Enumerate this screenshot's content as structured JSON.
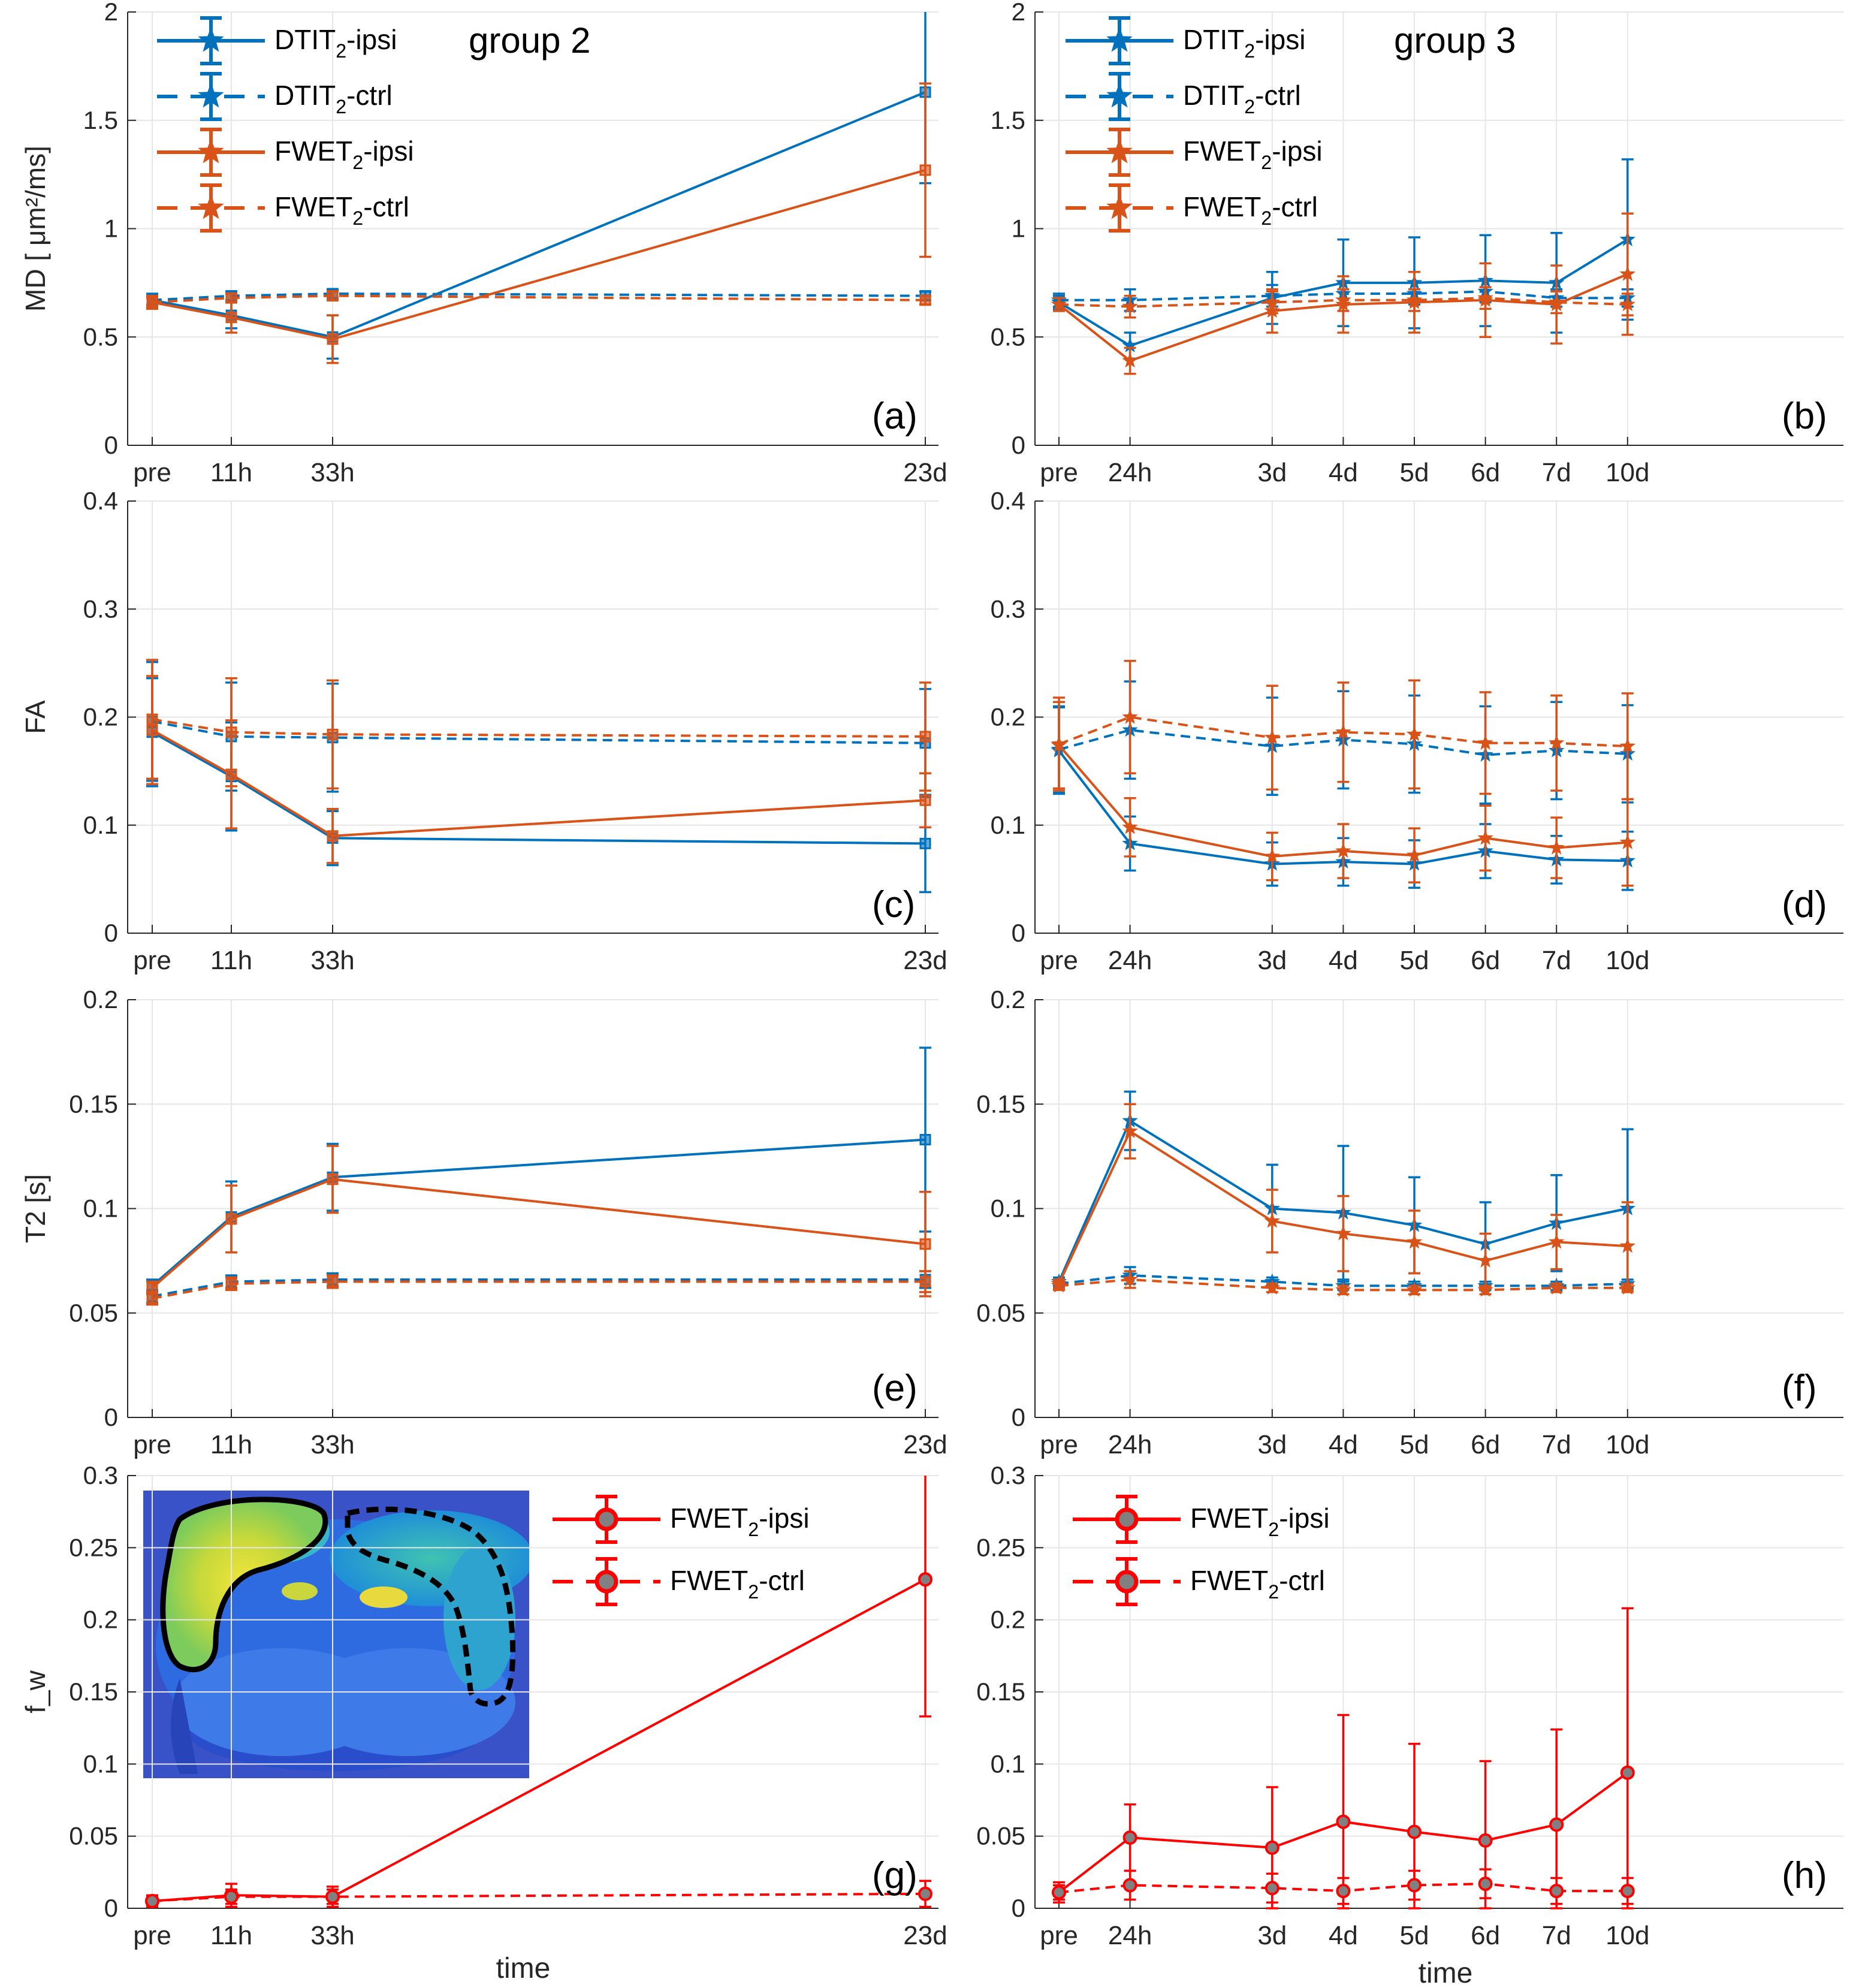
{
  "figure": {
    "xlabel": "time",
    "group_titles": {
      "left": "group 2",
      "right": "group 3"
    }
  },
  "colors": {
    "blue": "#0072BD",
    "orange": "#D95319",
    "red": "#FF0000",
    "marker_fill_gray": "#808080",
    "grid": "#E6E6E6"
  },
  "chart_data": [
    {
      "id": "a",
      "type": "line",
      "label": "(a)",
      "title": "group 2",
      "xlabel": "",
      "ylabel": "MD [ μm²/ms]",
      "ylim": [
        0,
        2
      ],
      "yticks": [
        0,
        0.5,
        1,
        1.5,
        2
      ],
      "ytick_labels": [
        "0",
        "0.5",
        "1",
        "1.5",
        "2"
      ],
      "x": [
        0,
        11,
        33,
        552
      ],
      "x_tick_labels": [
        "pre",
        "11h",
        "33h",
        "23d"
      ],
      "legend": "top-left",
      "grid": true,
      "series": [
        {
          "name": "DTIT2-ipsi",
          "color": "#0072BD",
          "dash": "solid",
          "marker": "square",
          "values": [
            0.67,
            0.6,
            0.5,
            1.63
          ],
          "err": [
            0.03,
            0.06,
            0.1,
            0.42
          ]
        },
        {
          "name": "DTIT2-ctrl",
          "color": "#0072BD",
          "dash": "dashed",
          "marker": "square",
          "values": [
            0.67,
            0.69,
            0.7,
            0.69
          ],
          "err": [
            0.02,
            0.02,
            0.02,
            0.02
          ]
        },
        {
          "name": "FWET2-ipsi",
          "color": "#D95319",
          "dash": "solid",
          "marker": "square",
          "values": [
            0.66,
            0.59,
            0.49,
            1.27
          ],
          "err": [
            0.03,
            0.07,
            0.11,
            0.4
          ]
        },
        {
          "name": "FWET2-ctrl",
          "color": "#D95319",
          "dash": "dashed",
          "marker": "square",
          "values": [
            0.66,
            0.68,
            0.69,
            0.67
          ],
          "err": [
            0.02,
            0.02,
            0.02,
            0.02
          ]
        }
      ]
    },
    {
      "id": "b",
      "type": "line",
      "label": "(b)",
      "title": "group 3",
      "xlabel": "",
      "ylabel": "",
      "ylim": [
        0,
        2
      ],
      "yticks": [
        0,
        0.5,
        1,
        1.5,
        2
      ],
      "ytick_labels": [
        "0",
        "0.5",
        "1",
        "1.5",
        "2"
      ],
      "x": [
        0,
        1,
        3,
        4,
        5,
        6,
        7,
        10
      ],
      "x_tick_pos": [
        0,
        1,
        3,
        4,
        5,
        6,
        7,
        8
      ],
      "x_tick_labels": [
        "pre",
        "24h",
        "3d",
        "4d",
        "5d",
        "6d",
        "7d",
        "10d"
      ],
      "legend": "top-left",
      "grid": true,
      "series": [
        {
          "name": "DTIT2-ipsi",
          "color": "#0072BD",
          "dash": "solid",
          "marker": "star",
          "values": [
            0.66,
            0.46,
            0.68,
            0.75,
            0.75,
            0.76,
            0.75,
            0.95
          ],
          "err": [
            0.03,
            0.06,
            0.12,
            0.2,
            0.21,
            0.21,
            0.23,
            0.37
          ]
        },
        {
          "name": "DTIT2-ctrl",
          "color": "#0072BD",
          "dash": "dashed",
          "marker": "star",
          "values": [
            0.67,
            0.67,
            0.69,
            0.7,
            0.7,
            0.71,
            0.68,
            0.68
          ],
          "err": [
            0.03,
            0.05,
            0.05,
            0.05,
            0.05,
            0.05,
            0.04,
            0.04
          ]
        },
        {
          "name": "FWET2-ipsi",
          "color": "#D95319",
          "dash": "solid",
          "marker": "star",
          "values": [
            0.65,
            0.39,
            0.62,
            0.65,
            0.66,
            0.67,
            0.65,
            0.79
          ],
          "err": [
            0.03,
            0.06,
            0.1,
            0.13,
            0.14,
            0.17,
            0.18,
            0.28
          ]
        },
        {
          "name": "FWET2-ctrl",
          "color": "#D95319",
          "dash": "dashed",
          "marker": "star",
          "values": [
            0.65,
            0.64,
            0.66,
            0.67,
            0.67,
            0.68,
            0.66,
            0.65
          ],
          "err": [
            0.03,
            0.05,
            0.05,
            0.05,
            0.05,
            0.05,
            0.05,
            0.05
          ]
        }
      ]
    },
    {
      "id": "c",
      "type": "line",
      "label": "(c)",
      "xlabel": "",
      "ylabel": "FA",
      "ylim": [
        0,
        0.4
      ],
      "yticks": [
        0,
        0.1,
        0.2,
        0.3,
        0.4
      ],
      "ytick_labels": [
        "0",
        "0.1",
        "0.2",
        "0.3",
        "0.4"
      ],
      "x": [
        0,
        11,
        33,
        552
      ],
      "x_tick_labels": [
        "pre",
        "11h",
        "33h",
        "23d"
      ],
      "grid": true,
      "series": [
        {
          "name": "DTIT2-ipsi",
          "color": "#0072BD",
          "dash": "solid",
          "marker": "square",
          "values": [
            0.186,
            0.145,
            0.088,
            0.083
          ],
          "err": [
            0.05,
            0.05,
            0.025,
            0.045
          ]
        },
        {
          "name": "DTIT2-ctrl",
          "color": "#0072BD",
          "dash": "dashed",
          "marker": "square",
          "values": [
            0.196,
            0.182,
            0.181,
            0.176
          ],
          "err": [
            0.055,
            0.05,
            0.05,
            0.05
          ]
        },
        {
          "name": "FWET2-ipsi",
          "color": "#D95319",
          "dash": "solid",
          "marker": "square",
          "values": [
            0.188,
            0.147,
            0.09,
            0.123
          ],
          "err": [
            0.05,
            0.05,
            0.025,
            0.025
          ]
        },
        {
          "name": "FWET2-ctrl",
          "color": "#D95319",
          "dash": "dashed",
          "marker": "square",
          "values": [
            0.198,
            0.186,
            0.184,
            0.182
          ],
          "err": [
            0.055,
            0.05,
            0.05,
            0.05
          ]
        }
      ]
    },
    {
      "id": "d",
      "type": "line",
      "label": "(d)",
      "xlabel": "",
      "ylabel": "",
      "ylim": [
        0,
        0.4
      ],
      "yticks": [
        0,
        0.1,
        0.2,
        0.3,
        0.4
      ],
      "ytick_labels": [
        "0",
        "0.1",
        "0.2",
        "0.3",
        "0.4"
      ],
      "x": [
        0,
        1,
        3,
        4,
        5,
        6,
        7,
        10
      ],
      "x_tick_pos": [
        0,
        1,
        3,
        4,
        5,
        6,
        7,
        8
      ],
      "x_tick_labels": [
        "pre",
        "24h",
        "3d",
        "4d",
        "5d",
        "6d",
        "7d",
        "10d"
      ],
      "grid": true,
      "series": [
        {
          "name": "DTIT2-ipsi",
          "color": "#0072BD",
          "dash": "solid",
          "marker": "star",
          "values": [
            0.169,
            0.083,
            0.064,
            0.066,
            0.064,
            0.076,
            0.068,
            0.067
          ],
          "err": [
            0.04,
            0.025,
            0.02,
            0.022,
            0.022,
            0.025,
            0.022,
            0.027
          ]
        },
        {
          "name": "DTIT2-ctrl",
          "color": "#0072BD",
          "dash": "dashed",
          "marker": "star",
          "values": [
            0.17,
            0.188,
            0.173,
            0.179,
            0.175,
            0.165,
            0.169,
            0.166
          ],
          "err": [
            0.04,
            0.045,
            0.045,
            0.045,
            0.045,
            0.045,
            0.045,
            0.045
          ]
        },
        {
          "name": "FWET2-ipsi",
          "color": "#D95319",
          "dash": "solid",
          "marker": "star",
          "values": [
            0.174,
            0.098,
            0.071,
            0.076,
            0.072,
            0.088,
            0.079,
            0.084
          ],
          "err": [
            0.04,
            0.027,
            0.022,
            0.025,
            0.025,
            0.03,
            0.028,
            0.04
          ]
        },
        {
          "name": "FWET2-ctrl",
          "color": "#D95319",
          "dash": "dashed",
          "marker": "star",
          "values": [
            0.175,
            0.2,
            0.181,
            0.186,
            0.184,
            0.176,
            0.176,
            0.173
          ],
          "err": [
            0.043,
            0.052,
            0.048,
            0.046,
            0.05,
            0.047,
            0.044,
            0.049
          ]
        }
      ]
    },
    {
      "id": "e",
      "type": "line",
      "label": "(e)",
      "xlabel": "",
      "ylabel": "T2 [s]",
      "ylim": [
        0,
        0.2
      ],
      "yticks": [
        0,
        0.05,
        0.1,
        0.15,
        0.2
      ],
      "ytick_labels": [
        "0",
        "0.05",
        "0.1",
        "0.15",
        "0.2"
      ],
      "x": [
        0,
        11,
        33,
        552
      ],
      "x_tick_labels": [
        "pre",
        "11h",
        "33h",
        "23d"
      ],
      "grid": true,
      "series": [
        {
          "name": "DTIT2-ipsi",
          "color": "#0072BD",
          "dash": "solid",
          "marker": "square",
          "values": [
            0.063,
            0.096,
            0.115,
            0.133
          ],
          "err": [
            0.003,
            0.017,
            0.016,
            0.044
          ]
        },
        {
          "name": "DTIT2-ctrl",
          "color": "#0072BD",
          "dash": "dashed",
          "marker": "square",
          "values": [
            0.058,
            0.065,
            0.066,
            0.066
          ],
          "err": [
            0.003,
            0.003,
            0.003,
            0.004
          ]
        },
        {
          "name": "FWET2-ipsi",
          "color": "#D95319",
          "dash": "solid",
          "marker": "square",
          "values": [
            0.062,
            0.095,
            0.114,
            0.083
          ],
          "err": [
            0.003,
            0.016,
            0.016,
            0.025
          ]
        },
        {
          "name": "FWET2-ctrl",
          "color": "#D95319",
          "dash": "dashed",
          "marker": "square",
          "values": [
            0.057,
            0.064,
            0.065,
            0.065
          ],
          "err": [
            0.003,
            0.003,
            0.003,
            0.005
          ]
        }
      ]
    },
    {
      "id": "f",
      "type": "line",
      "label": "(f)",
      "xlabel": "",
      "ylabel": "",
      "ylim": [
        0,
        0.2
      ],
      "yticks": [
        0,
        0.05,
        0.1,
        0.15,
        0.2
      ],
      "ytick_labels": [
        "0",
        "0.05",
        "0.1",
        "0.15",
        "0.2"
      ],
      "x": [
        0,
        1,
        3,
        4,
        5,
        6,
        7,
        10
      ],
      "x_tick_pos": [
        0,
        1,
        3,
        4,
        5,
        6,
        7,
        8
      ],
      "x_tick_labels": [
        "pre",
        "24h",
        "3d",
        "4d",
        "5d",
        "6d",
        "7d",
        "10d"
      ],
      "grid": true,
      "series": [
        {
          "name": "DTIT2-ipsi",
          "color": "#0072BD",
          "dash": "solid",
          "marker": "star",
          "values": [
            0.065,
            0.142,
            0.1,
            0.098,
            0.092,
            0.083,
            0.093,
            0.1
          ],
          "err": [
            0.002,
            0.014,
            0.021,
            0.032,
            0.023,
            0.02,
            0.023,
            0.038
          ]
        },
        {
          "name": "DTIT2-ctrl",
          "color": "#0072BD",
          "dash": "dashed",
          "marker": "star",
          "values": [
            0.064,
            0.068,
            0.065,
            0.063,
            0.063,
            0.063,
            0.063,
            0.064
          ],
          "err": [
            0.002,
            0.004,
            0.002,
            0.002,
            0.002,
            0.002,
            0.002,
            0.002
          ]
        },
        {
          "name": "FWET2-ipsi",
          "color": "#D95319",
          "dash": "solid",
          "marker": "star",
          "values": [
            0.064,
            0.137,
            0.094,
            0.088,
            0.084,
            0.075,
            0.084,
            0.082
          ],
          "err": [
            0.002,
            0.013,
            0.015,
            0.018,
            0.015,
            0.013,
            0.013,
            0.021
          ]
        },
        {
          "name": "FWET2-ctrl",
          "color": "#D95319",
          "dash": "dashed",
          "marker": "star",
          "values": [
            0.063,
            0.066,
            0.062,
            0.061,
            0.061,
            0.061,
            0.062,
            0.062
          ],
          "err": [
            0.002,
            0.004,
            0.002,
            0.002,
            0.002,
            0.002,
            0.002,
            0.002
          ]
        }
      ]
    },
    {
      "id": "g",
      "type": "line",
      "label": "(g)",
      "xlabel": "time",
      "ylabel": "f_w",
      "ylim": [
        0,
        0.3
      ],
      "yticks": [
        0,
        0.05,
        0.1,
        0.15,
        0.2,
        0.25,
        0.3
      ],
      "ytick_labels": [
        "0",
        "0.05",
        "0.1",
        "0.15",
        "0.2",
        "0.25",
        "0.3"
      ],
      "x": [
        0,
        11,
        33,
        552
      ],
      "x_tick_labels": [
        "pre",
        "11h",
        "33h",
        "23d"
      ],
      "legend": "top-right",
      "grid": true,
      "inset": "ROI map image (upper left)",
      "series": [
        {
          "name": "FWET2-ipsi",
          "color": "#FF0000",
          "dash": "solid",
          "marker": "circle",
          "values": [
            0.005,
            0.009,
            0.008,
            0.228
          ],
          "err": [
            0.004,
            0.008,
            0.007,
            0.095
          ]
        },
        {
          "name": "FWET2-ctrl",
          "color": "#FF0000",
          "dash": "dashed",
          "marker": "circle",
          "values": [
            0.005,
            0.008,
            0.008,
            0.01
          ],
          "err": [
            0.003,
            0.005,
            0.005,
            0.009
          ]
        }
      ]
    },
    {
      "id": "h",
      "type": "line",
      "label": "(h)",
      "xlabel": "time",
      "ylabel": "",
      "ylim": [
        0,
        0.3
      ],
      "yticks": [
        0,
        0.05,
        0.1,
        0.15,
        0.2,
        0.25,
        0.3
      ],
      "ytick_labels": [
        "0",
        "0.05",
        "0.1",
        "0.15",
        "0.2",
        "0.25",
        "0.3"
      ],
      "x": [
        0,
        1,
        3,
        4,
        5,
        6,
        7,
        10
      ],
      "x_tick_pos": [
        0,
        1,
        3,
        4,
        5,
        6,
        7,
        8
      ],
      "x_tick_labels": [
        "pre",
        "24h",
        "3d",
        "4d",
        "5d",
        "6d",
        "7d",
        "10d"
      ],
      "legend": "top-left",
      "grid": true,
      "series": [
        {
          "name": "FWET2-ipsi",
          "color": "#FF0000",
          "dash": "solid",
          "marker": "circle",
          "values": [
            0.011,
            0.049,
            0.042,
            0.06,
            0.053,
            0.047,
            0.058,
            0.094
          ],
          "err": [
            0.007,
            0.023,
            0.042,
            0.074,
            0.061,
            0.055,
            0.066,
            0.114
          ]
        },
        {
          "name": "FWET2-ctrl",
          "color": "#FF0000",
          "dash": "dashed",
          "marker": "circle",
          "values": [
            0.011,
            0.016,
            0.014,
            0.012,
            0.016,
            0.017,
            0.012,
            0.012
          ],
          "err": [
            0.005,
            0.01,
            0.01,
            0.009,
            0.01,
            0.01,
            0.009,
            0.009
          ]
        }
      ]
    }
  ]
}
